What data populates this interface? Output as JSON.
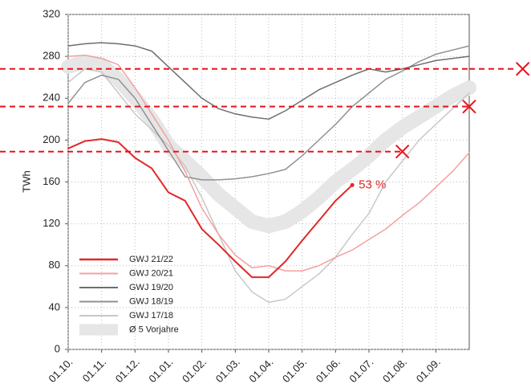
{
  "chart_data": {
    "type": "line",
    "ylabel": "TWh",
    "x": [
      0,
      0.5,
      1,
      1.5,
      2,
      2.5,
      3,
      3.5,
      4,
      4.5,
      5,
      5.5,
      6,
      6.5,
      7,
      7.5,
      8,
      8.5,
      9,
      9.5,
      10,
      10.5,
      11,
      11.5,
      12
    ],
    "xlim": [
      0,
      12
    ],
    "xticks": [
      {
        "value": 0,
        "label": "01.10."
      },
      {
        "value": 1,
        "label": "01.11."
      },
      {
        "value": 2,
        "label": "01.12."
      },
      {
        "value": 3,
        "label": "01.01."
      },
      {
        "value": 4,
        "label": "01.02."
      },
      {
        "value": 5,
        "label": "01.03."
      },
      {
        "value": 6,
        "label": "01.04."
      },
      {
        "value": 7,
        "label": "01.05."
      },
      {
        "value": 8,
        "label": "01.06."
      },
      {
        "value": 9,
        "label": "01.07."
      },
      {
        "value": 10,
        "label": "01.08."
      },
      {
        "value": 11,
        "label": "01.09."
      }
    ],
    "ylim": [
      0,
      320
    ],
    "yticks": [
      0,
      40,
      80,
      120,
      160,
      200,
      240,
      280,
      320
    ],
    "grid": true,
    "legend": "lower left",
    "series": [
      {
        "name": "GWJ 21/22",
        "color": "#e02828",
        "width": 2,
        "values": [
          192,
          199,
          201,
          198,
          183,
          173,
          150,
          142,
          115,
          100,
          84,
          69,
          69,
          84,
          104,
          123,
          142,
          157,
          null,
          null,
          null,
          null,
          null,
          null,
          null
        ]
      },
      {
        "name": "GWJ 20/21",
        "color": "#f4a0a0",
        "width": 1.5,
        "values": [
          280,
          281,
          278,
          272,
          250,
          225,
          200,
          170,
          135,
          110,
          90,
          78,
          80,
          75,
          75,
          80,
          88,
          95,
          105,
          115,
          128,
          140,
          155,
          170,
          188
        ]
      },
      {
        "name": "GWJ 19/20",
        "color": "#6e6e6e",
        "width": 1.5,
        "values": [
          290,
          292,
          293,
          292,
          290,
          285,
          270,
          255,
          240,
          230,
          225,
          222,
          220,
          228,
          238,
          248,
          255,
          262,
          268,
          265,
          268,
          272,
          276,
          278,
          280
        ]
      },
      {
        "name": "GWJ 18/19",
        "color": "#919191",
        "width": 1.5,
        "values": [
          235,
          255,
          262,
          258,
          240,
          215,
          190,
          165,
          162,
          162,
          163,
          165,
          168,
          172,
          185,
          200,
          215,
          232,
          245,
          258,
          266,
          275,
          282,
          286,
          290
        ]
      },
      {
        "name": "GWJ 17/18",
        "color": "#c8c8c8",
        "width": 1.5,
        "values": [
          255,
          268,
          265,
          245,
          225,
          210,
          195,
          175,
          145,
          110,
          75,
          55,
          45,
          48,
          60,
          72,
          88,
          110,
          130,
          160,
          180,
          200,
          215,
          230,
          245
        ]
      },
      {
        "name": "Ø 5 Vorjahre",
        "color": "#e6e6e6",
        "width": 18,
        "band": true,
        "values": [
          270,
          275,
          272,
          258,
          240,
          220,
          195,
          180,
          165,
          148,
          135,
          122,
          118,
          122,
          132,
          145,
          160,
          172,
          185,
          200,
          212,
          222,
          232,
          242,
          250
        ]
      }
    ],
    "annotations": [
      {
        "text": "53 %",
        "x": 8.5,
        "y": 157,
        "color": "#e02828"
      }
    ],
    "reference_lines": [
      {
        "y": 268,
        "x": 13.6
      },
      {
        "y": 232,
        "x": 12
      },
      {
        "y": 189,
        "x": 10
      }
    ],
    "reference_color": "#e8141e"
  }
}
